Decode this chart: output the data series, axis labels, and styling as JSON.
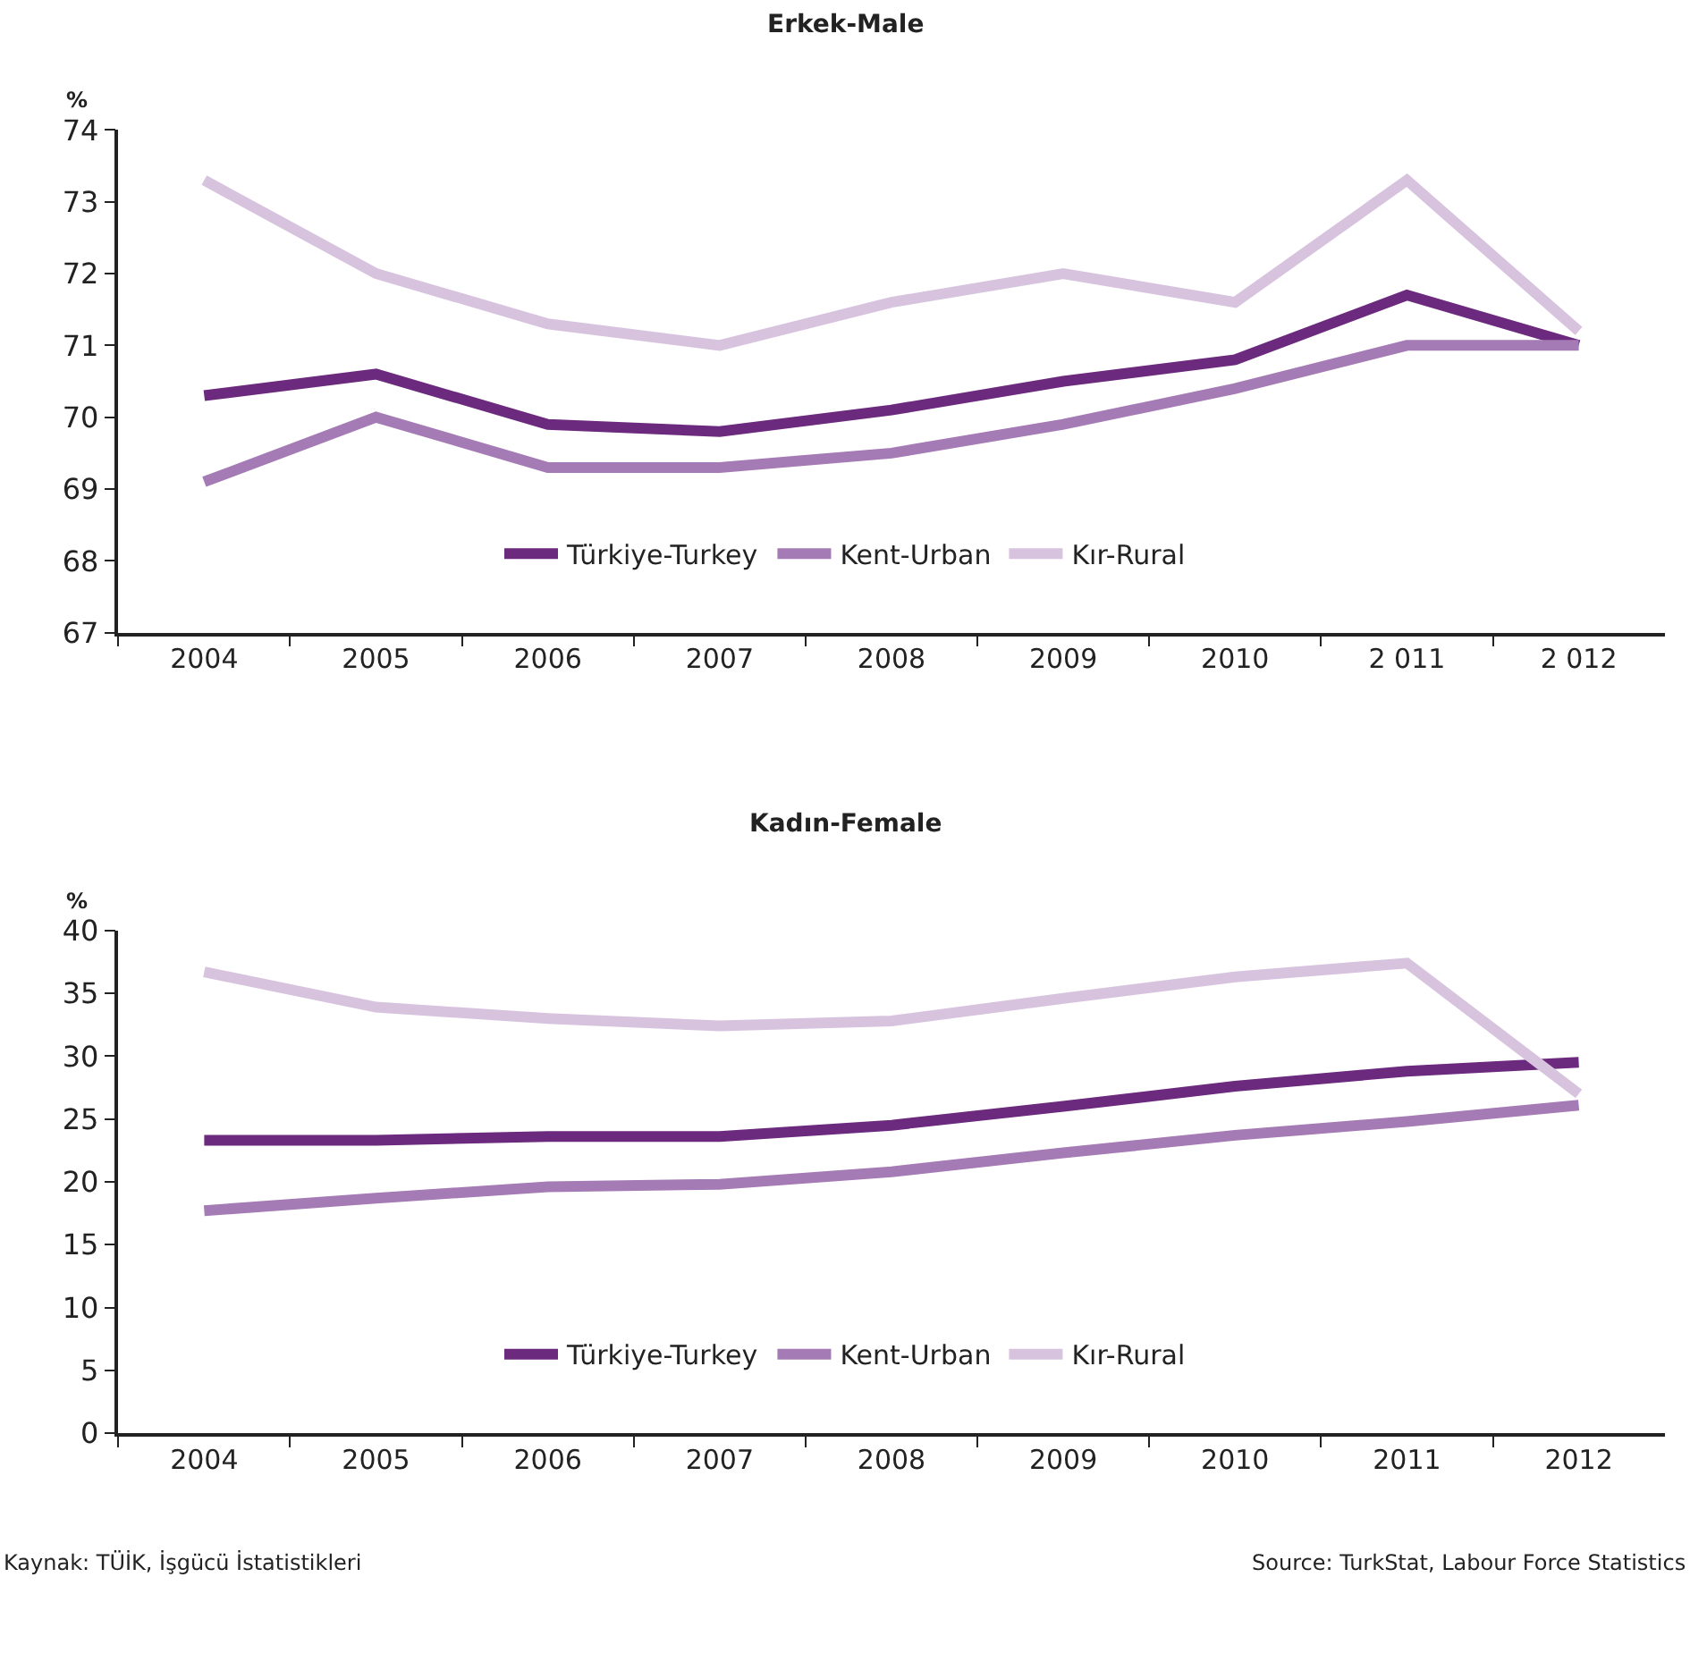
{
  "chart_data": [
    {
      "type": "line",
      "title": "Erkek-Male",
      "ylabel": "%",
      "categories": [
        "2004",
        "2005",
        "2006",
        "2007",
        "2008",
        "2009",
        "2010",
        "2 011",
        "2 012"
      ],
      "ylim": [
        67,
        74
      ],
      "yticks": [
        67,
        68,
        69,
        70,
        71,
        72,
        73,
        74
      ],
      "legend": "bottom",
      "marker": "none",
      "line_style": "solid",
      "series": [
        {
          "name": "Türkiye-Turkey",
          "color": "#6b2a7d",
          "values": [
            70.3,
            70.6,
            69.9,
            69.8,
            70.1,
            70.5,
            70.8,
            71.7,
            71.0
          ]
        },
        {
          "name": "Kent-Urban",
          "color": "#a57bb5",
          "values": [
            69.1,
            70.0,
            69.3,
            69.3,
            69.5,
            69.9,
            70.4,
            71.0,
            71.0
          ]
        },
        {
          "name": "Kır-Rural",
          "color": "#d8c3df",
          "values": [
            73.3,
            72.0,
            71.3,
            71.0,
            71.6,
            72.0,
            71.6,
            73.3,
            71.2
          ]
        }
      ]
    },
    {
      "type": "line",
      "title": "Kadın-Female",
      "ylabel": "%",
      "categories": [
        "2004",
        "2005",
        "2006",
        "2007",
        "2008",
        "2009",
        "2010",
        "2011",
        "2012"
      ],
      "ylim": [
        0,
        40
      ],
      "yticks": [
        0,
        5,
        10,
        15,
        20,
        25,
        30,
        35,
        40
      ],
      "legend": "bottom",
      "marker": "none",
      "line_style": "solid",
      "annotations": [
        "Kaynak: TÜİK, İşgücü İstatistikleri",
        "Source: TurkStat, Labour Force Statistics"
      ],
      "series": [
        {
          "name": "Türkiye-Turkey",
          "color": "#6b2a7d",
          "values": [
            23.3,
            23.3,
            23.6,
            23.6,
            24.5,
            26.0,
            27.6,
            28.8,
            29.5
          ]
        },
        {
          "name": "Kent-Urban",
          "color": "#a57bb5",
          "values": [
            17.7,
            18.7,
            19.6,
            19.8,
            20.8,
            22.3,
            23.7,
            24.8,
            26.1
          ]
        },
        {
          "name": "Kır-Rural",
          "color": "#d8c3df",
          "values": [
            36.7,
            33.9,
            33.0,
            32.4,
            32.8,
            34.6,
            36.3,
            37.4,
            27.0
          ]
        }
      ]
    }
  ]
}
